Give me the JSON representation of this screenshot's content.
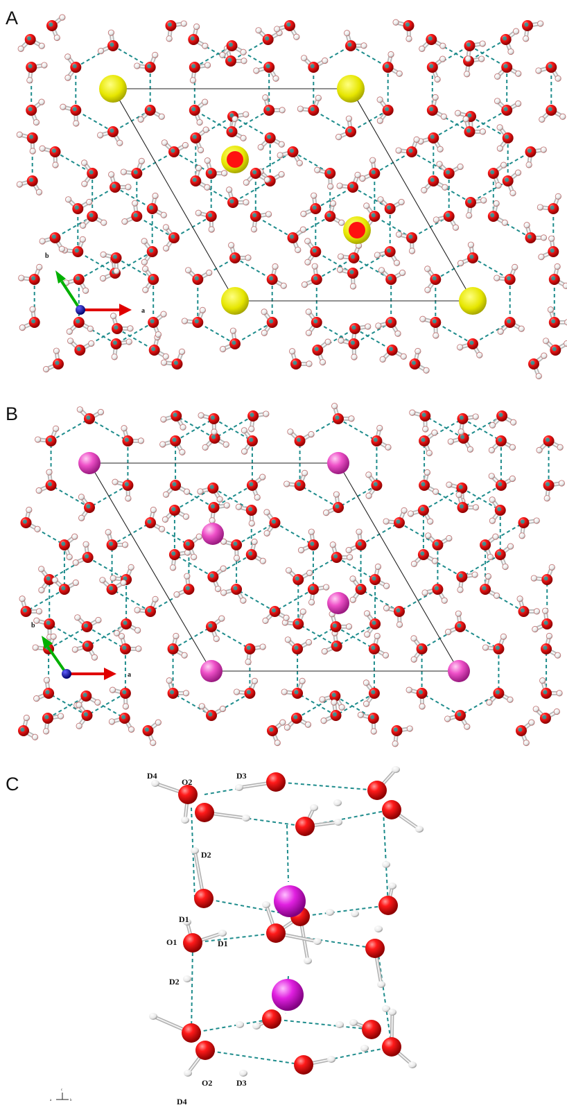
{
  "panels": {
    "a": {
      "letter": "A",
      "axes": {
        "a": "a",
        "b": "b"
      }
    },
    "b": {
      "letter": "B",
      "axes": {
        "a": "a",
        "b": "b"
      }
    },
    "c": {
      "letter": "C",
      "labels": [
        "D4",
        "O2",
        "D3",
        "D2",
        "D1",
        "O1",
        "D1",
        "D2",
        "O2",
        "D3",
        "D4"
      ],
      "axis_triad": {
        "c": "c",
        "a": "a",
        "b": "b"
      }
    }
  },
  "colors": {
    "oxygen": "#e8001c",
    "deuterium": "#f4f4f4",
    "hydrogen_bond": "#1e8c8c",
    "guest_density": "#e0e000",
    "guest_atom": "#e040c0",
    "axis_a": "#e00000",
    "axis_b": "#00b000",
    "axis_c": "#000080"
  }
}
